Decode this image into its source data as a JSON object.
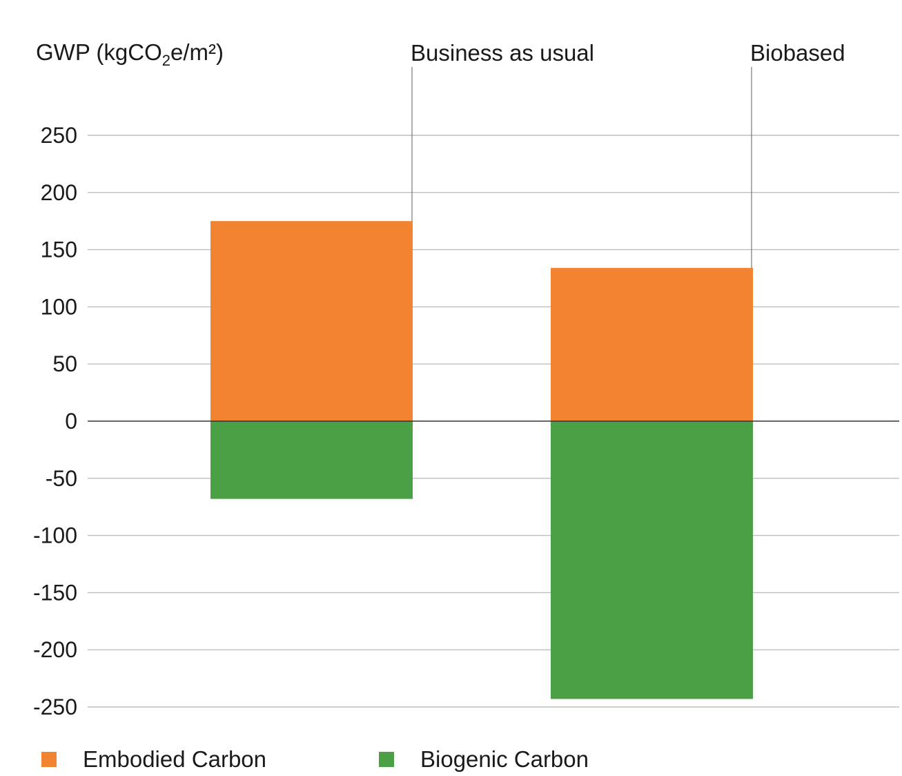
{
  "chart_data": {
    "type": "bar",
    "stacked": true,
    "title": "",
    "ylabel": {
      "main": "GWP  (kgCO",
      "subscript": "2",
      "tail": "e/m²)"
    },
    "categories": [
      "Business as usual",
      "Biobased"
    ],
    "series": [
      {
        "name": "Embodied Carbon",
        "color": "#f28330",
        "values": [
          175,
          134
        ]
      },
      {
        "name": "Biogenic Carbon",
        "color": "#4ba045",
        "values": [
          -68,
          -243
        ]
      }
    ],
    "yticks": [
      250,
      200,
      150,
      100,
      50,
      0,
      -50,
      -100,
      -150,
      -200,
      -250
    ],
    "ytick_labels": [
      "250",
      "200",
      "150",
      "100",
      "50",
      "0",
      "-50",
      "-100",
      "-150",
      "-200",
      "-250"
    ],
    "ylim": [
      -250,
      250
    ],
    "grid": true,
    "legend_position": "bottom-left"
  },
  "legend": {
    "embodied_label": "Embodied Carbon",
    "biogenic_label": "Biogenic Carbon"
  }
}
